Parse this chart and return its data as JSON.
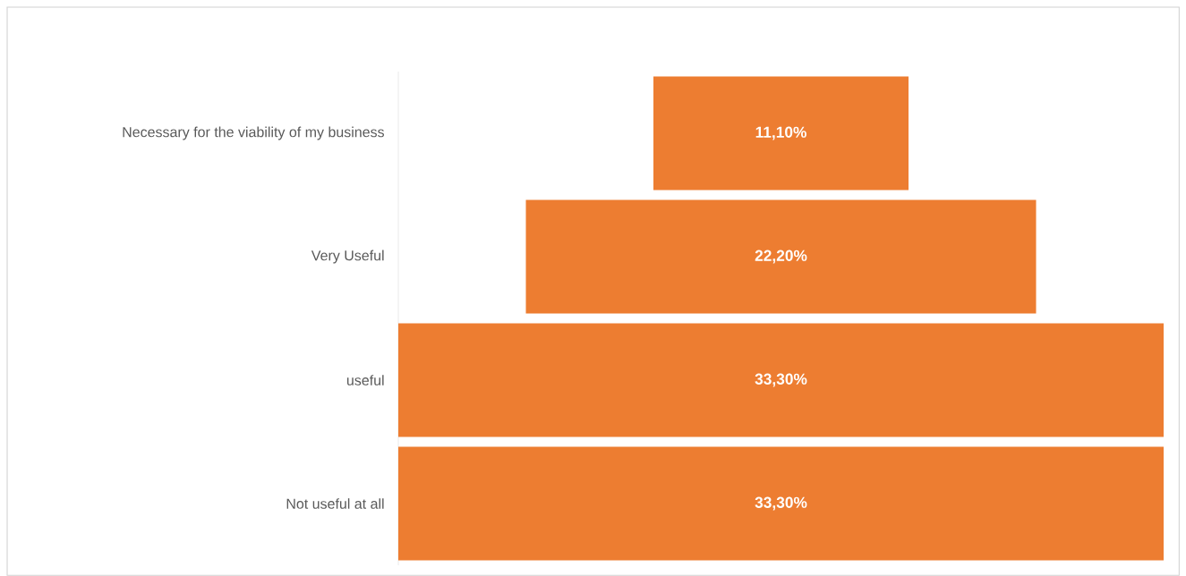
{
  "chart_data": {
    "type": "other",
    "categories": [
      "Necessary for the viability of my business",
      "Very Useful",
      "useful",
      "Not useful at all"
    ],
    "values": [
      11.1,
      22.2,
      33.3,
      33.3
    ],
    "value_labels": [
      "11,10%",
      "22,20%",
      "33,30%",
      "33,30%"
    ],
    "color": "#ed7d31"
  }
}
